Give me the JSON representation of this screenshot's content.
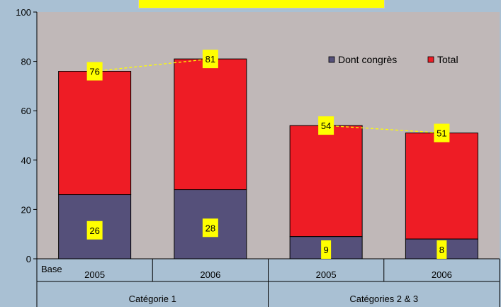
{
  "chart_data": {
    "type": "bar",
    "title": "",
    "ylim": [
      0,
      100
    ],
    "yticks": [
      0,
      20,
      40,
      60,
      80,
      100
    ],
    "base_label": "Base",
    "groups": [
      {
        "label": "Catégorie 1",
        "years": [
          "2005",
          "2006"
        ]
      },
      {
        "label": "Catégories 2 & 3",
        "years": [
          "2005",
          "2006"
        ]
      }
    ],
    "categories": [
      "2005",
      "2006",
      "2005",
      "2006"
    ],
    "series": [
      {
        "name": "Dont congrès",
        "values": [
          26,
          28,
          9,
          8
        ],
        "color": "#55507a"
      },
      {
        "name": "Total",
        "values": [
          76,
          81,
          54,
          51
        ],
        "color": "#ee1c25"
      }
    ],
    "legend_position": "top-right",
    "plot_background": "#c0b8b8",
    "label_background": "#ffff00",
    "trend_line_color": "#ffff00"
  }
}
